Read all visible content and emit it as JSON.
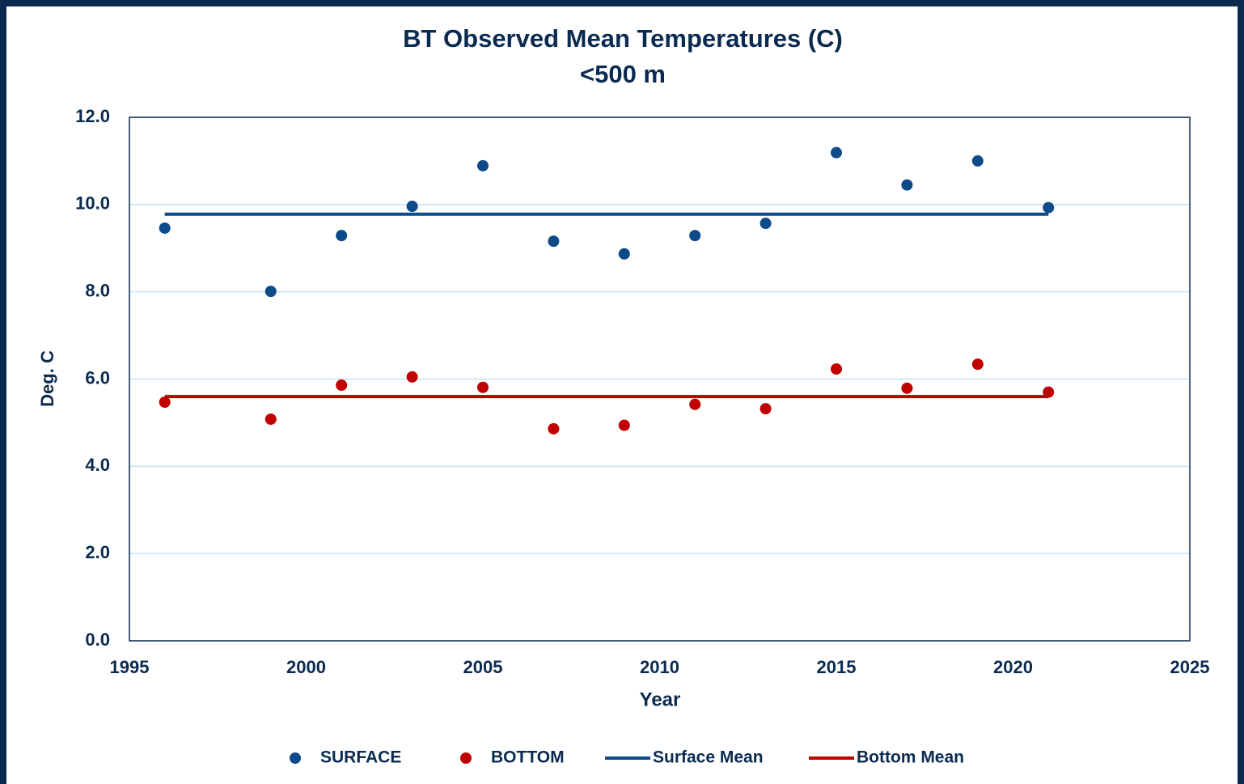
{
  "chart_data": {
    "type": "scatter",
    "title": "BT Observed Mean Temperatures (C)",
    "subtitle": "<500 m",
    "x_label": "Year",
    "y_label": "Deg. C",
    "xlim": [
      1995,
      2025
    ],
    "xticks": [
      1995,
      2000,
      2005,
      2010,
      2015,
      2020,
      2025
    ],
    "ylim": [
      0,
      12
    ],
    "yticks": [
      {
        "value": 0,
        "label": "0.0"
      },
      {
        "value": 2,
        "label": "2.0"
      },
      {
        "value": 4,
        "label": "4.0"
      },
      {
        "value": 6,
        "label": "6.0"
      },
      {
        "value": 8,
        "label": "8.0"
      },
      {
        "value": 10,
        "label": "10.0"
      },
      {
        "value": 12,
        "label": "12.0"
      }
    ],
    "grid": true,
    "legend": "bottom",
    "series": [
      {
        "name": "SURFACE",
        "mode": "markers",
        "color": "#0d4a8a",
        "x": [
          1996,
          1999,
          2001,
          2003,
          2005,
          2007,
          2009,
          2011,
          2013,
          2015,
          2017,
          2019,
          2021
        ],
        "values": [
          9.46,
          8.01,
          9.29,
          9.96,
          10.89,
          9.16,
          8.87,
          9.29,
          9.57,
          11.19,
          10.45,
          11.0,
          9.93
        ]
      },
      {
        "name": "BOTTOM",
        "mode": "markers",
        "color": "#c00000",
        "x": [
          1996,
          1999,
          2001,
          2003,
          2005,
          2007,
          2009,
          2011,
          2013,
          2015,
          2017,
          2019,
          2021
        ],
        "values": [
          5.47,
          5.08,
          5.86,
          6.05,
          5.81,
          4.86,
          4.94,
          5.42,
          5.32,
          6.23,
          5.79,
          6.34,
          5.7
        ]
      },
      {
        "name": "Surface Mean",
        "mode": "line",
        "color": "#0d4a8a",
        "x": [
          1996,
          2021
        ],
        "values": [
          9.78,
          9.78
        ]
      },
      {
        "name": "Bottom Mean",
        "mode": "line",
        "color": "#c00000",
        "x": [
          1996,
          2021
        ],
        "values": [
          5.6,
          5.6
        ]
      }
    ]
  }
}
